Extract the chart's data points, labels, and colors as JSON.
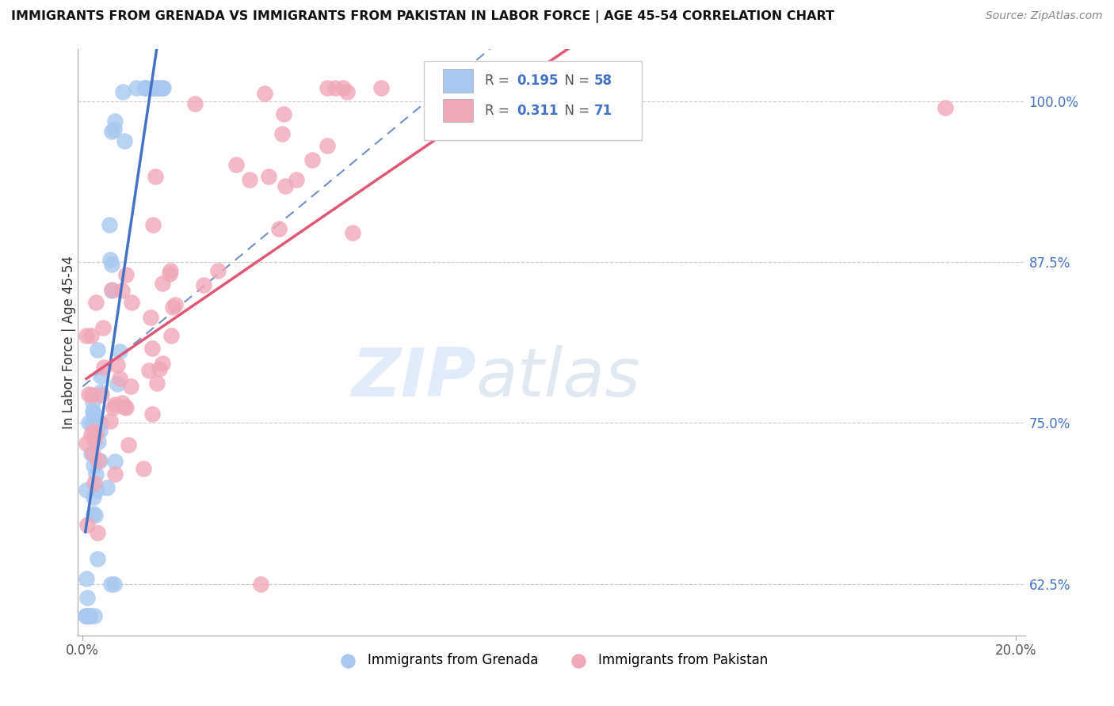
{
  "title": "IMMIGRANTS FROM GRENADA VS IMMIGRANTS FROM PAKISTAN IN LABOR FORCE | AGE 45-54 CORRELATION CHART",
  "source": "Source: ZipAtlas.com",
  "ylabel": "In Labor Force | Age 45-54",
  "xlim": [
    -0.001,
    0.202
  ],
  "ylim": [
    0.585,
    1.04
  ],
  "yticks": [
    0.625,
    0.75,
    0.875,
    1.0
  ],
  "ytick_labels": [
    "62.5%",
    "75.0%",
    "87.5%",
    "100.0%"
  ],
  "xticks": [
    0.0,
    0.2
  ],
  "xtick_labels": [
    "0.0%",
    "20.0%"
  ],
  "grenada_R": 0.195,
  "grenada_N": 58,
  "pakistan_R": 0.311,
  "pakistan_N": 71,
  "grenada_color": "#a8c8f0",
  "pakistan_color": "#f0a8b8",
  "grenada_line_color": "#4472C4",
  "pakistan_line_color": "#e05878",
  "background_color": "#ffffff",
  "grid_color": "#cccccc",
  "watermark_zip": "ZIP",
  "watermark_atlas": "atlas"
}
